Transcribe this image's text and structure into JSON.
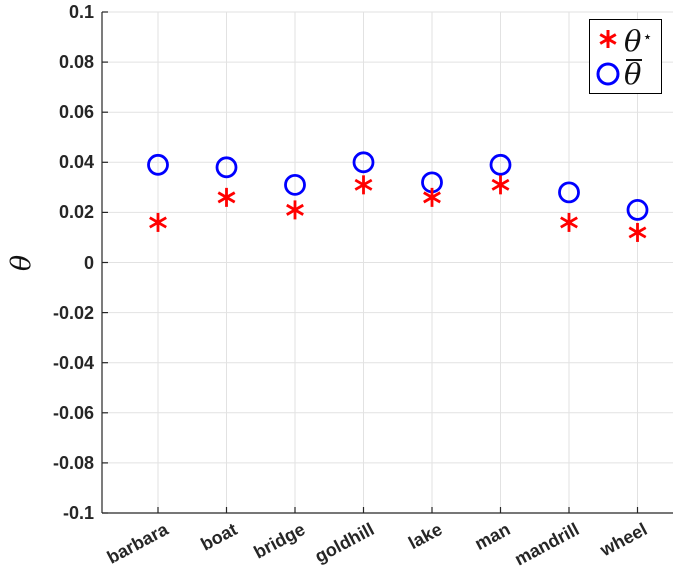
{
  "chart_data": {
    "type": "scatter",
    "title": "",
    "xlabel": "",
    "ylabel": "θ",
    "categories": [
      "barbara",
      "boat",
      "bridge",
      "goldhill",
      "lake",
      "man",
      "mandrill",
      "wheel"
    ],
    "series": [
      {
        "name": "θ⋆",
        "marker": "asterisk",
        "color": "#ff0000",
        "values": [
          0.016,
          0.026,
          0.021,
          0.031,
          0.026,
          0.031,
          0.016,
          0.012
        ]
      },
      {
        "name": "θ̄",
        "marker": "circle",
        "color": "#0000ff",
        "values": [
          0.039,
          0.038,
          0.031,
          0.04,
          0.032,
          0.039,
          0.028,
          0.021
        ]
      }
    ],
    "ylim": [
      -0.1,
      0.1
    ],
    "yticks": [
      0.1,
      0.08,
      0.06,
      0.04,
      0.02,
      0,
      -0.02,
      -0.04,
      -0.06,
      -0.08,
      -0.1
    ],
    "ytick_labels": [
      "0.1",
      "0.08",
      "0.06",
      "0.04",
      "0.02",
      "0",
      "-0.02",
      "-0.04",
      "-0.06",
      "-0.08",
      "-0.1"
    ],
    "grid": true,
    "legend_position": "top-right"
  },
  "legend": {
    "items": [
      {
        "base": "θ",
        "sup": "⋆"
      },
      {
        "base": "θ",
        "overbar": true
      }
    ]
  },
  "colors": {
    "series1": "#ff0000",
    "series2": "#0000ff",
    "grid": "#e2e2e2",
    "axis": "#262626",
    "legend_border": "#000000"
  }
}
